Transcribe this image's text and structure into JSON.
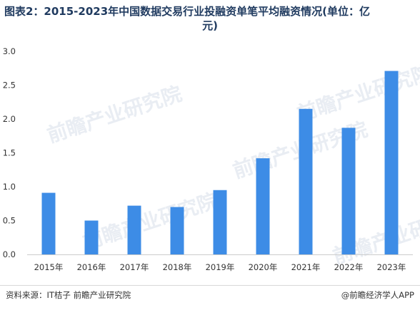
{
  "title_line1": "图表2：2015-2023年中国数据交易行业投融资单笔平均融资情况(单位：亿",
  "title_line2": "元)",
  "source": "资料来源：IT桔子 前瞻产业研究院",
  "credit": "@前瞻经济学人APP",
  "watermark": "前瞻产业研究院",
  "colors": {
    "bar": "#3d8ce6",
    "axis": "#cccccc",
    "tick_text": "#333333"
  },
  "chart_data": {
    "type": "bar",
    "categories": [
      "2015年",
      "2016年",
      "2017年",
      "2018年",
      "2019年",
      "2020年",
      "2021年",
      "2022年",
      "2023年"
    ],
    "values": [
      0.91,
      0.5,
      0.72,
      0.7,
      0.95,
      1.42,
      2.15,
      1.87,
      2.71
    ],
    "ylim": [
      0,
      3.0
    ],
    "yticks": [
      "0.0",
      "0.5",
      "1.0",
      "1.5",
      "2.0",
      "2.5",
      "3.0"
    ],
    "grid": false,
    "legend": "none"
  }
}
